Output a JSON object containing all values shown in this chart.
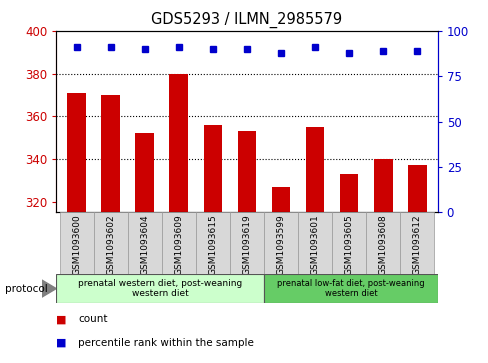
{
  "title": "GDS5293 / ILMN_2985579",
  "samples": [
    "GSM1093600",
    "GSM1093602",
    "GSM1093604",
    "GSM1093609",
    "GSM1093615",
    "GSM1093619",
    "GSM1093599",
    "GSM1093601",
    "GSM1093605",
    "GSM1093608",
    "GSM1093612"
  ],
  "counts": [
    371,
    370,
    352,
    380,
    356,
    353,
    327,
    355,
    333,
    340,
    337
  ],
  "percentiles": [
    91,
    91,
    90,
    91,
    90,
    90,
    88,
    91,
    88,
    89,
    89
  ],
  "ylim_left": [
    315,
    400
  ],
  "ylim_right": [
    0,
    100
  ],
  "yticks_left": [
    320,
    340,
    360,
    380,
    400
  ],
  "yticks_right": [
    0,
    25,
    50,
    75,
    100
  ],
  "bar_color": "#cc0000",
  "dot_color": "#0000cc",
  "group1_label": "prenatal western diet, post-weaning\nwestern diet",
  "group2_label": "prenatal low-fat diet, post-weaning\nwestern diet",
  "group1_count": 6,
  "group2_count": 5,
  "group1_color": "#ccffcc",
  "group2_color": "#66cc66",
  "legend_count": "count",
  "legend_percentile": "percentile rank within the sample",
  "protocol_label": "protocol",
  "bar_color_hex": "#cc0000",
  "right_axis_color": "#0000cc",
  "xtick_bg_color": "#d8d8d8",
  "background_color": "#ffffff",
  "grid_yticks": [
    340,
    360,
    380
  ]
}
